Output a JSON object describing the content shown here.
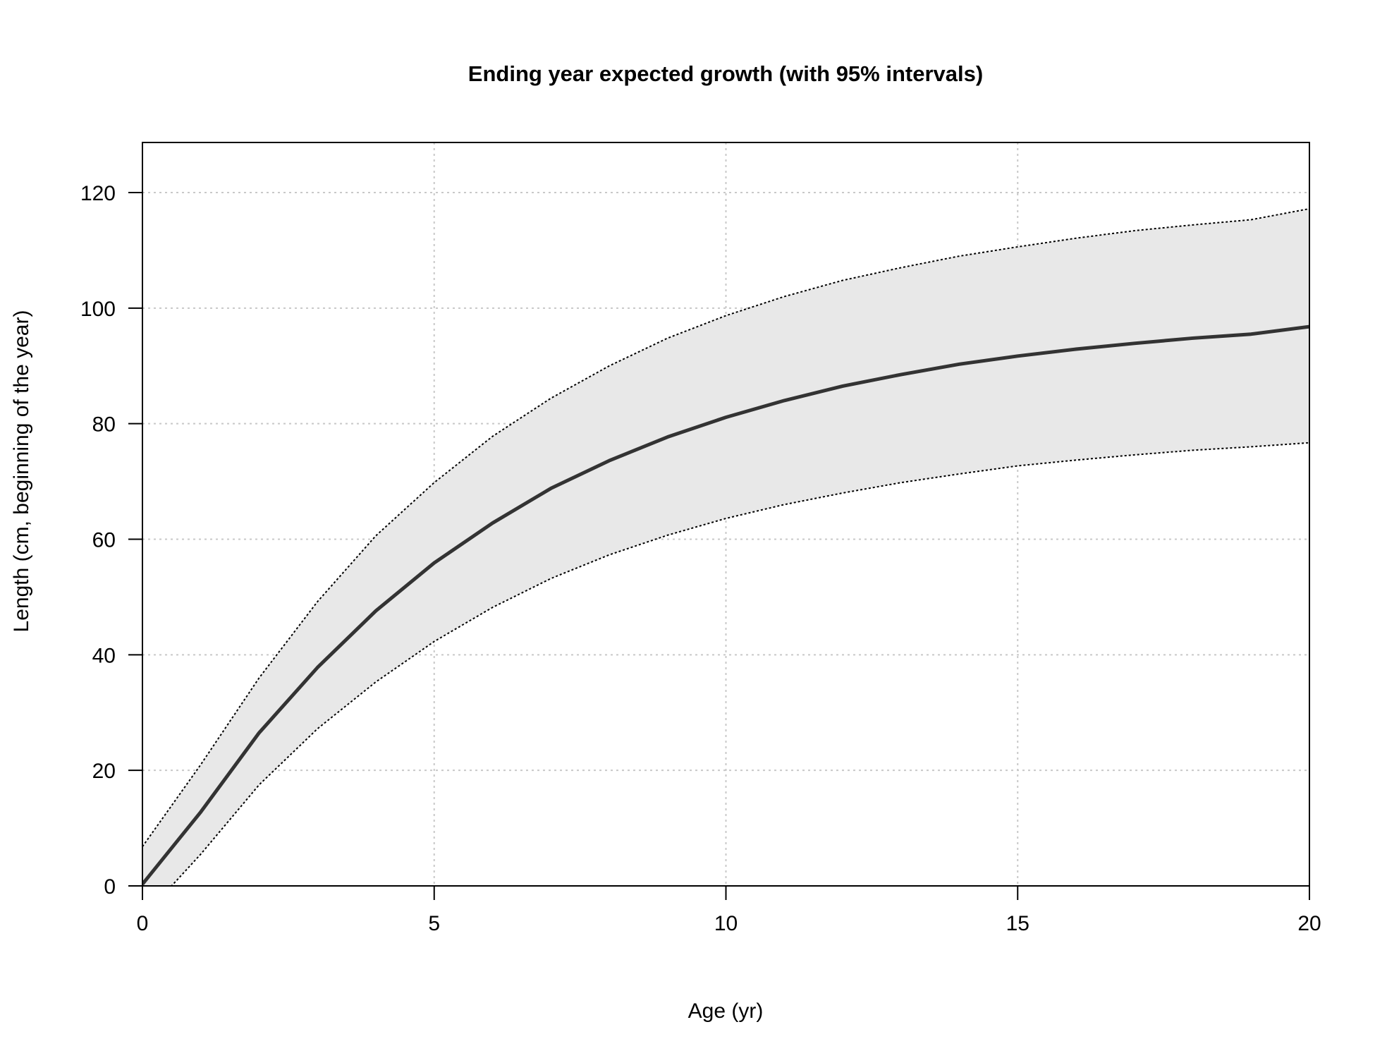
{
  "colors": {
    "band_fill": "#e8e8e8",
    "median_line": "#333333",
    "interval_line": "#000000",
    "grid": "#c8c8c8",
    "axis": "#000000"
  },
  "chart_data": {
    "type": "line",
    "title": "Ending year expected growth (with 95% intervals)",
    "xlabel": "Age (yr)",
    "ylabel": "Length (cm, beginning of the year)",
    "xlim": [
      0,
      20
    ],
    "ylim": [
      0,
      120
    ],
    "xticks": [
      "0",
      "5",
      "10",
      "15",
      "20"
    ],
    "yticks": [
      "0",
      "20",
      "40",
      "60",
      "80",
      "100",
      "120"
    ],
    "grid": true,
    "legend": "none",
    "x": [
      0,
      1,
      2,
      3,
      4,
      5,
      6,
      7,
      8,
      9,
      10,
      11,
      12,
      13,
      14,
      15,
      16,
      17,
      18,
      19,
      20
    ],
    "series": [
      {
        "style": "solid-thick",
        "values": [
          0.3,
          12.8,
          26.5,
          37.8,
          47.6,
          55.9,
          62.8,
          68.8,
          73.6,
          77.7,
          81.1,
          84.0,
          86.5,
          88.5,
          90.3,
          91.7,
          92.9,
          93.9,
          94.8,
          95.5,
          96.8
        ]
      },
      {
        "style": "dotted-upper",
        "values": [
          6.8,
          21.0,
          36.0,
          49.2,
          60.6,
          69.8,
          77.8,
          84.4,
          90.0,
          94.8,
          98.7,
          102.0,
          104.8,
          107.0,
          109.0,
          110.6,
          112.1,
          113.4,
          114.4,
          115.3,
          117.2
        ]
      },
      {
        "style": "dotted-lower",
        "values": [
          -5.5,
          5.5,
          17.5,
          27.2,
          35.3,
          42.3,
          48.2,
          53.2,
          57.3,
          60.7,
          63.6,
          66.0,
          68.0,
          69.8,
          71.3,
          72.7,
          73.7,
          74.6,
          75.4,
          76.0,
          76.7
        ]
      }
    ]
  }
}
